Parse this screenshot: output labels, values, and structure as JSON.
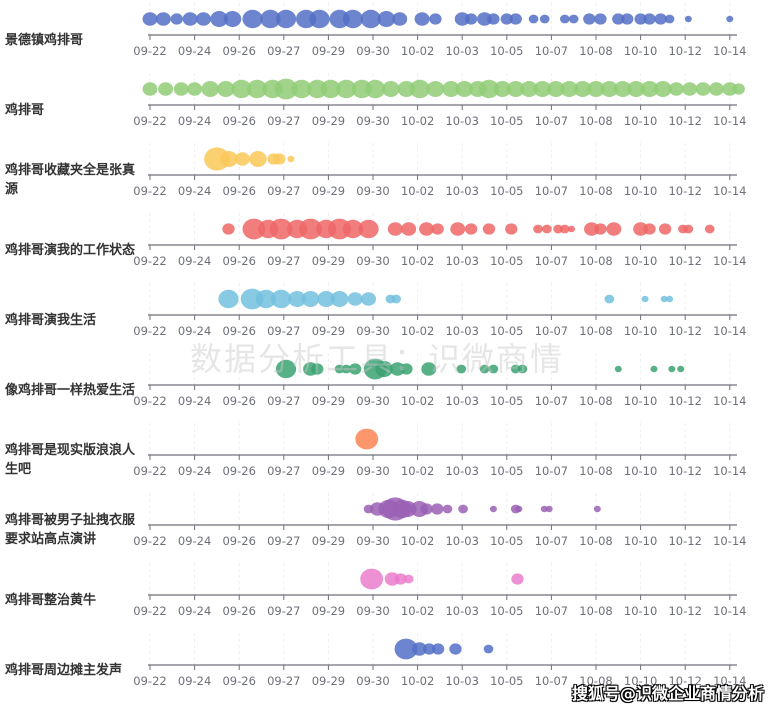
{
  "chart_data": {
    "type": "scatter",
    "subtype": "single-axis bubble timeline",
    "x_unit": "tick index (0 = first tick label)",
    "x_ticks": [
      "09-22",
      "09-24",
      "09-26",
      "09-27",
      "09-29",
      "09-30",
      "10-02",
      "10-03",
      "10-05",
      "10-07",
      "10-08",
      "10-10",
      "10-12",
      "10-14"
    ],
    "xlim": [
      0,
      13.1
    ],
    "grid": true,
    "rows": [
      {
        "label": "景德镇鸡排哥",
        "color": "#5470c6",
        "points": [
          [
            0,
            4
          ],
          [
            0.3,
            4
          ],
          [
            0.6,
            3
          ],
          [
            0.9,
            4
          ],
          [
            1.2,
            4
          ],
          [
            1.55,
            5
          ],
          [
            1.85,
            5
          ],
          [
            2.3,
            6
          ],
          [
            2.7,
            6
          ],
          [
            3.05,
            6
          ],
          [
            3.5,
            6
          ],
          [
            3.8,
            6
          ],
          [
            4.25,
            6
          ],
          [
            4.55,
            6
          ],
          [
            4.95,
            6
          ],
          [
            5.3,
            5
          ],
          [
            5.6,
            4
          ],
          [
            6.1,
            4
          ],
          [
            6.4,
            3
          ],
          [
            7.0,
            4
          ],
          [
            7.2,
            3
          ],
          [
            7.5,
            4
          ],
          [
            7.7,
            3
          ],
          [
            8.0,
            3
          ],
          [
            8.2,
            3
          ],
          [
            8.6,
            2
          ],
          [
            8.85,
            2
          ],
          [
            9.3,
            2
          ],
          [
            9.5,
            2
          ],
          [
            9.85,
            3
          ],
          [
            10.1,
            3
          ],
          [
            10.5,
            3
          ],
          [
            10.7,
            3
          ],
          [
            11.0,
            3
          ],
          [
            11.2,
            3
          ],
          [
            11.45,
            3
          ],
          [
            11.65,
            2
          ],
          [
            12.07,
            1
          ],
          [
            13.0,
            1
          ]
        ]
      },
      {
        "label": "鸡排哥",
        "color": "#91cc75",
        "points": [
          [
            0,
            4
          ],
          [
            0.35,
            4
          ],
          [
            0.7,
            4
          ],
          [
            1.0,
            4
          ],
          [
            1.35,
            5
          ],
          [
            1.7,
            5
          ],
          [
            2.05,
            6
          ],
          [
            2.4,
            6
          ],
          [
            2.75,
            6
          ],
          [
            3.05,
            7
          ],
          [
            3.4,
            6
          ],
          [
            3.75,
            6
          ],
          [
            4.05,
            6
          ],
          [
            4.4,
            6
          ],
          [
            4.75,
            6
          ],
          [
            5.05,
            6
          ],
          [
            5.4,
            5
          ],
          [
            5.75,
            5
          ],
          [
            6.05,
            6
          ],
          [
            6.4,
            5
          ],
          [
            6.75,
            5
          ],
          [
            7.05,
            5
          ],
          [
            7.35,
            5
          ],
          [
            7.6,
            6
          ],
          [
            7.9,
            5
          ],
          [
            8.2,
            5
          ],
          [
            8.5,
            5
          ],
          [
            8.8,
            5
          ],
          [
            9.1,
            5
          ],
          [
            9.4,
            5
          ],
          [
            9.7,
            5
          ],
          [
            10.0,
            5
          ],
          [
            10.3,
            5
          ],
          [
            10.6,
            5
          ],
          [
            10.9,
            5
          ],
          [
            11.2,
            5
          ],
          [
            11.5,
            5
          ],
          [
            11.8,
            4
          ],
          [
            12.1,
            4
          ],
          [
            12.4,
            4
          ],
          [
            12.7,
            4
          ],
          [
            13.0,
            4
          ],
          [
            13.2,
            3
          ]
        ]
      },
      {
        "label": "鸡排哥收藏夹全是张真源",
        "color": "#fac858",
        "points": [
          [
            1.5,
            8
          ],
          [
            1.77,
            5
          ],
          [
            2.07,
            4
          ],
          [
            2.42,
            5
          ],
          [
            2.77,
            3
          ],
          [
            2.9,
            3
          ],
          [
            3.16,
            1
          ]
        ]
      },
      {
        "label": "鸡排哥演我的工作状态",
        "color": "#ee6666",
        "points": [
          [
            1.76,
            3
          ],
          [
            2.33,
            7
          ],
          [
            2.65,
            6
          ],
          [
            2.94,
            7
          ],
          [
            3.3,
            6
          ],
          [
            3.6,
            7
          ],
          [
            3.95,
            6
          ],
          [
            4.25,
            7
          ],
          [
            4.55,
            6
          ],
          [
            4.9,
            6
          ],
          [
            5.5,
            4
          ],
          [
            5.8,
            4
          ],
          [
            6.2,
            4
          ],
          [
            6.45,
            3
          ],
          [
            6.9,
            4
          ],
          [
            7.2,
            3
          ],
          [
            7.6,
            3
          ],
          [
            8.1,
            3
          ],
          [
            8.7,
            2
          ],
          [
            8.9,
            2
          ],
          [
            9.15,
            2
          ],
          [
            9.3,
            2
          ],
          [
            9.45,
            1
          ],
          [
            9.9,
            4
          ],
          [
            10.1,
            3
          ],
          [
            10.4,
            4
          ],
          [
            11.0,
            4
          ],
          [
            11.2,
            3
          ],
          [
            11.55,
            3
          ],
          [
            11.95,
            2
          ],
          [
            12.07,
            2
          ],
          [
            12.55,
            2
          ]
        ]
      },
      {
        "label": "鸡排哥演我生活",
        "color": "#73c0de",
        "points": [
          [
            1.76,
            6
          ],
          [
            2.29,
            7
          ],
          [
            2.6,
            6
          ],
          [
            2.94,
            6
          ],
          [
            3.3,
            5
          ],
          [
            3.6,
            5
          ],
          [
            3.95,
            5
          ],
          [
            4.25,
            5
          ],
          [
            4.6,
            4
          ],
          [
            4.9,
            4
          ],
          [
            5.39,
            2
          ],
          [
            5.52,
            2
          ],
          [
            10.3,
            2
          ],
          [
            11.1,
            1
          ],
          [
            11.53,
            1
          ],
          [
            11.65,
            1
          ]
        ]
      },
      {
        "label": "像鸡排哥一样热爱生活",
        "color": "#3ba272",
        "points": [
          [
            3.05,
            6
          ],
          [
            3.6,
            4
          ],
          [
            3.75,
            3
          ],
          [
            4.25,
            2
          ],
          [
            4.4,
            2
          ],
          [
            4.6,
            3
          ],
          [
            5.05,
            7
          ],
          [
            5.25,
            5
          ],
          [
            5.55,
            4
          ],
          [
            5.75,
            3
          ],
          [
            6.25,
            4
          ],
          [
            6.98,
            2
          ],
          [
            7.5,
            2
          ],
          [
            7.7,
            2
          ],
          [
            8.2,
            2
          ],
          [
            8.35,
            2
          ],
          [
            10.5,
            1
          ],
          [
            11.3,
            1
          ],
          [
            11.7,
            1
          ],
          [
            11.9,
            1
          ]
        ]
      },
      {
        "label": "鸡排哥是现实版浪浪人生吧",
        "color": "#fc8452",
        "points": [
          [
            4.86,
            7
          ]
        ]
      },
      {
        "label": "鸡排哥被男子扯拽衣服要求站高点演讲",
        "color": "#9a60b4",
        "points": [
          [
            4.9,
            2
          ],
          [
            5.1,
            4
          ],
          [
            5.35,
            6
          ],
          [
            5.5,
            8
          ],
          [
            5.65,
            6
          ],
          [
            5.78,
            5
          ],
          [
            6.04,
            5
          ],
          [
            6.2,
            3
          ],
          [
            6.44,
            3
          ],
          [
            6.67,
            2
          ],
          [
            7.02,
            2
          ],
          [
            7.7,
            1
          ],
          [
            8.2,
            2
          ],
          [
            8.27,
            1
          ],
          [
            8.84,
            1
          ],
          [
            8.95,
            1
          ],
          [
            10.03,
            1
          ]
        ]
      },
      {
        "label": "鸡排哥整治黄牛",
        "color": "#ea7ccc",
        "points": [
          [
            4.97,
            7
          ],
          [
            5.43,
            4
          ],
          [
            5.62,
            3
          ],
          [
            5.8,
            2
          ],
          [
            8.24,
            3
          ]
        ]
      },
      {
        "label": "鸡排哥周边摊主发声",
        "color": "#5470c6",
        "points": [
          [
            5.74,
            7
          ],
          [
            6.04,
            4
          ],
          [
            6.26,
            3
          ],
          [
            6.46,
            3
          ],
          [
            6.85,
            3
          ],
          [
            7.59,
            2
          ]
        ]
      }
    ]
  },
  "watermark": "数据分析工具：识微商情",
  "credit": "搜狐号@识微企业商情分析"
}
